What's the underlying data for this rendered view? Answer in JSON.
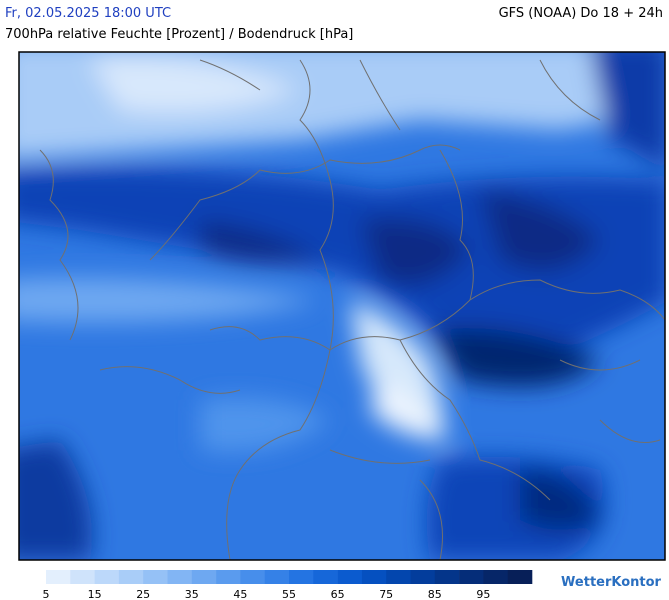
{
  "header": {
    "datetime": "Fr, 02.05.2025 18:00 UTC",
    "model": "GFS (NOAA) Do 18 + 24h",
    "subtitle": "700hPa relative Feuchte [Prozent] / Bodendruck [hPa]"
  },
  "legend": {
    "labels": [
      5,
      15,
      25,
      35,
      45,
      55,
      65,
      75,
      85,
      95
    ],
    "colors": [
      "#e3effd",
      "#cfe3fb",
      "#bcd8fa",
      "#a9cdf8",
      "#95c1f6",
      "#82b5f4",
      "#6ea8f1",
      "#5a9bee",
      "#478eeb",
      "#3581e7",
      "#2474e2",
      "#1667d9",
      "#0b5bcf",
      "#0550c0",
      "#0346ae",
      "#033d9c",
      "#04358a",
      "#052d79",
      "#062668",
      "#071f58"
    ]
  },
  "brand": "WetterKontor"
}
